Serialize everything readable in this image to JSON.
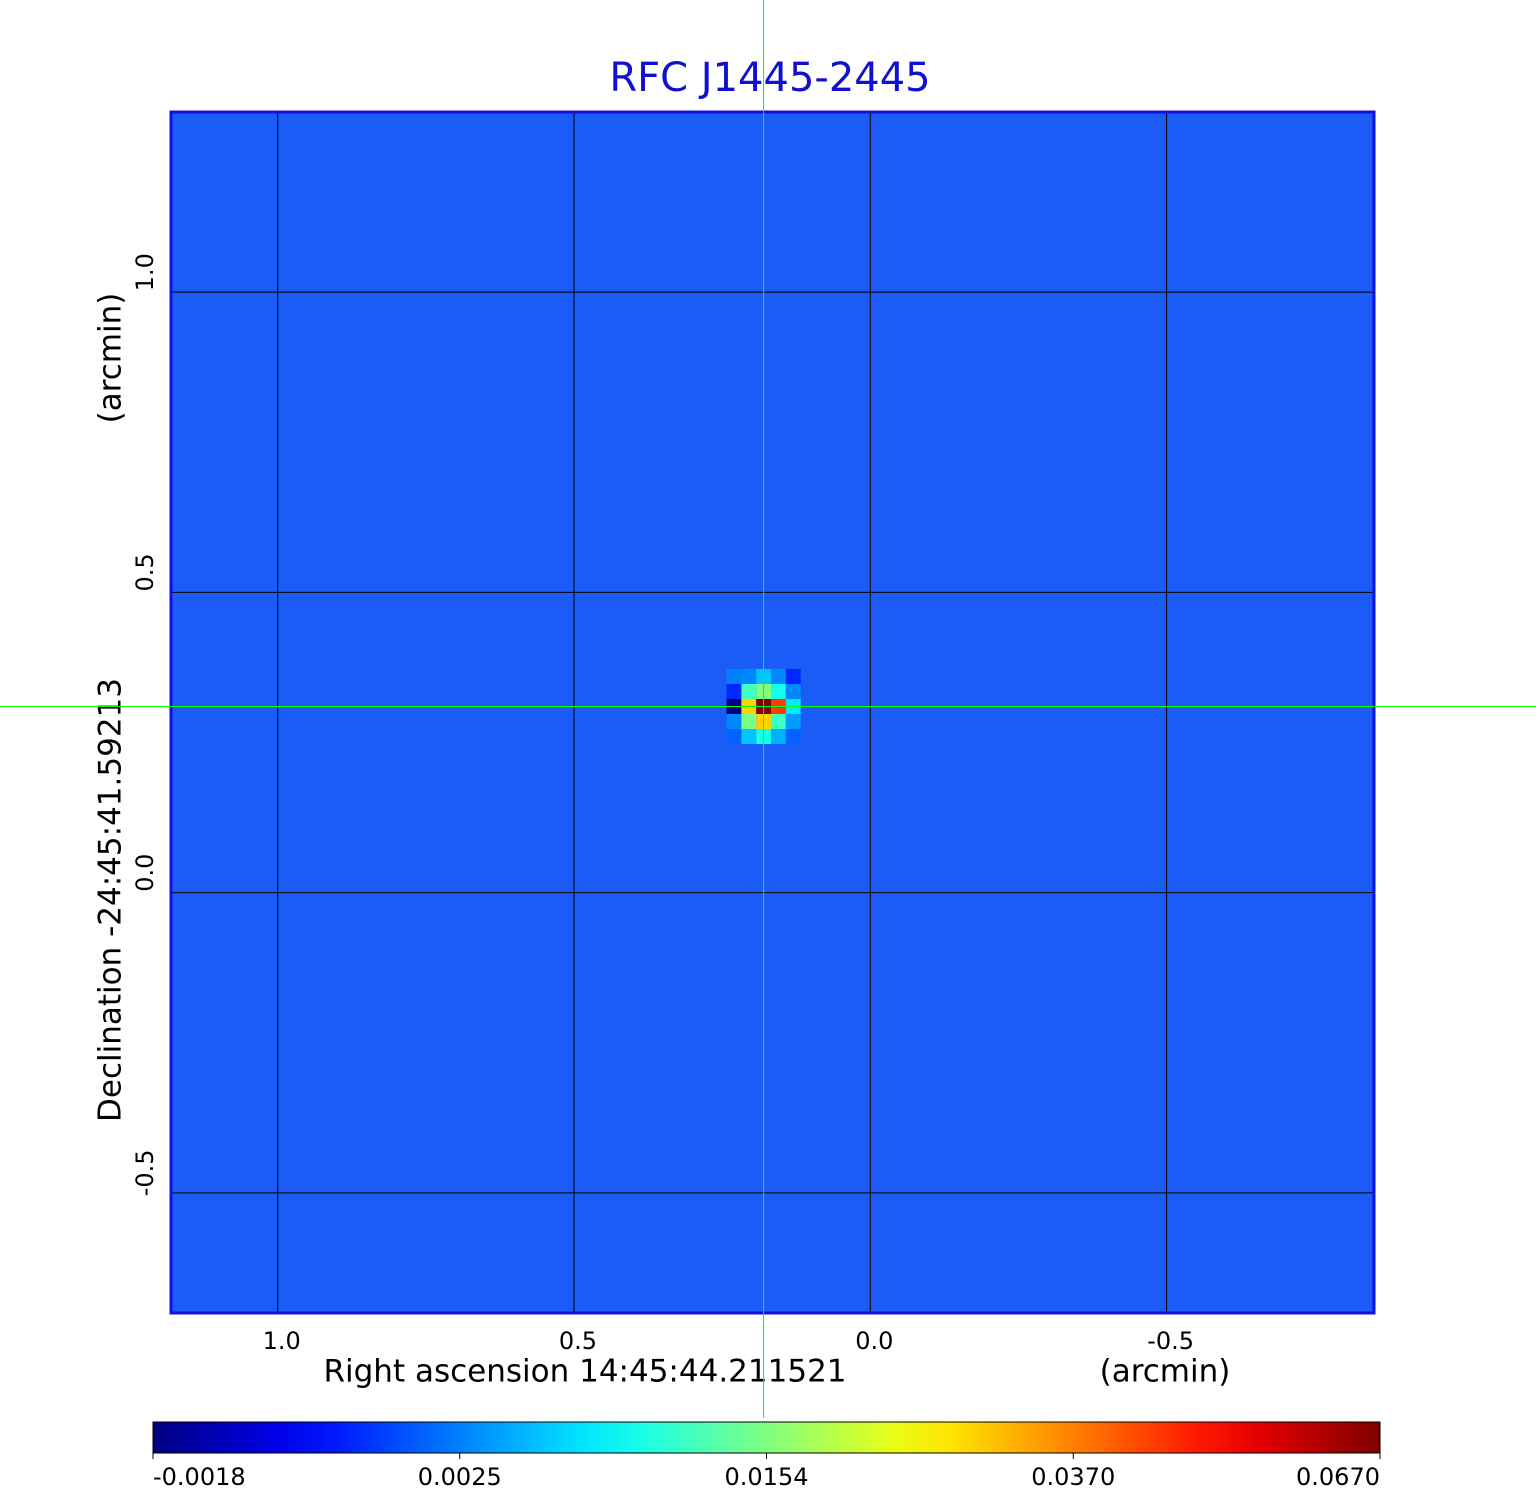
{
  "chart_data": {
    "type": "image",
    "title": "RFC J1445-2445",
    "xlabel": "Right ascension  14:45:44.211521",
    "xunit": "(arcmin)",
    "ylabel": "Declination  -24:45:41.59213",
    "yunit": "(arcmin)",
    "xlim": [
      1.18,
      -0.85
    ],
    "ylim": [
      -0.7,
      1.3
    ],
    "xticks": [
      {
        "value": 1,
        "label": "1.0"
      },
      0.5,
      {
        "value": 0,
        "label": "0.0"
      },
      -0.5
    ],
    "yticks": [
      -0.5,
      {
        "value": 0,
        "label": "0.0"
      },
      0.5,
      {
        "value": 1,
        "label": "1.0"
      }
    ],
    "grid": true,
    "grid_color": "#000000",
    "frame_color": "#1010e0",
    "background_color": "#1a5cf5",
    "colormap": "jet",
    "colorbar_ticks": [
      -0.0018,
      0.0025,
      0.0154,
      {
        "value": 0.037,
        "label": "0.0370"
      },
      {
        "value": 0.067,
        "label": "0.0670"
      }
    ],
    "image": {
      "center_x": 0.18,
      "center_y": 0.31,
      "pixel": 0.025,
      "rows": [
        [
          0.0025,
          0.003,
          0.006,
          0.003,
          0.001
        ],
        [
          0.001,
          0.012,
          0.0154,
          0.01,
          0.003
        ],
        [
          -0.0018,
          0.03,
          0.067,
          0.045,
          0.008
        ],
        [
          0.003,
          0.015,
          0.03,
          0.012,
          0.004
        ],
        [
          0.002,
          0.006,
          0.01,
          0.005,
          0.002
        ]
      ]
    },
    "marker": {
      "x": 0.18,
      "y": 0.31,
      "color": "#00ff00"
    }
  }
}
